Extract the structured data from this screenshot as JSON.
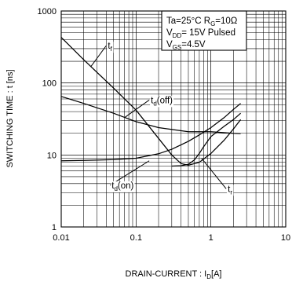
{
  "chart_data": {
    "type": "line",
    "title": "",
    "xlabel": "DRAIN-CURRENT : I_D[A]",
    "ylabel": "SWITCHING TIME : t [ns]",
    "xscale": "log",
    "yscale": "log",
    "xlim": [
      0.01,
      10
    ],
    "ylim": [
      1,
      1000
    ],
    "x_ticks": [
      "0.01",
      "0.1",
      "1",
      "10"
    ],
    "y_ticks": [
      "1",
      "10",
      "100",
      "1000"
    ],
    "grid": true,
    "conditions": [
      "Ta=25°C  R_G=10Ω",
      "V_DD= 15V  Pulsed",
      "V_GS=4.5V"
    ],
    "series": [
      {
        "name": "t_f",
        "x": [
          0.01,
          0.02,
          0.05,
          0.1,
          0.2,
          0.3,
          0.4,
          0.5,
          0.7,
          1.0,
          1.5,
          2.0,
          2.5
        ],
        "y": [
          430,
          210,
          85,
          42,
          17,
          10,
          7.6,
          7.2,
          7.9,
          10.5,
          16,
          23,
          31
        ]
      },
      {
        "name": "t_d(off)",
        "x": [
          0.01,
          0.02,
          0.05,
          0.1,
          0.2,
          0.5,
          1.0,
          2.0,
          2.5
        ],
        "y": [
          65,
          52,
          38,
          29,
          24,
          21,
          21,
          20,
          19.8
        ]
      },
      {
        "name": "t_d(on)",
        "x": [
          0.01,
          0.02,
          0.05,
          0.1,
          0.2,
          0.3,
          0.5,
          0.7,
          1.0,
          1.5,
          2.0,
          2.5
        ],
        "y": [
          8.3,
          8.4,
          8.6,
          9.0,
          10.4,
          12,
          15.5,
          19,
          24,
          33,
          43,
          52
        ]
      },
      {
        "name": "t_r",
        "x": [
          0.3,
          0.4,
          0.5,
          0.6,
          0.7,
          0.8,
          1.0,
          1.5,
          2.0,
          2.5
        ],
        "y": [
          7.0,
          7.1,
          7.4,
          8.5,
          10.5,
          13,
          18,
          25,
          31,
          38
        ]
      }
    ],
    "annotations": [
      {
        "series": "t_f",
        "text": "t_f",
        "at": [
          0.04,
          330
        ],
        "tip": [
          0.025,
          170
        ]
      },
      {
        "series": "t_d(off)",
        "text": "t_d(off)",
        "at": [
          0.15,
          58
        ],
        "tip": [
          0.07,
          33
        ]
      },
      {
        "series": "t_d(on)",
        "text": "t_d(on)",
        "at": [
          0.045,
          3.8
        ],
        "tip": [
          0.15,
          8.3
        ]
      },
      {
        "series": "t_r",
        "text": "t_r",
        "at": [
          1.6,
          3.4
        ],
        "tip": [
          0.75,
          9
        ]
      }
    ]
  }
}
